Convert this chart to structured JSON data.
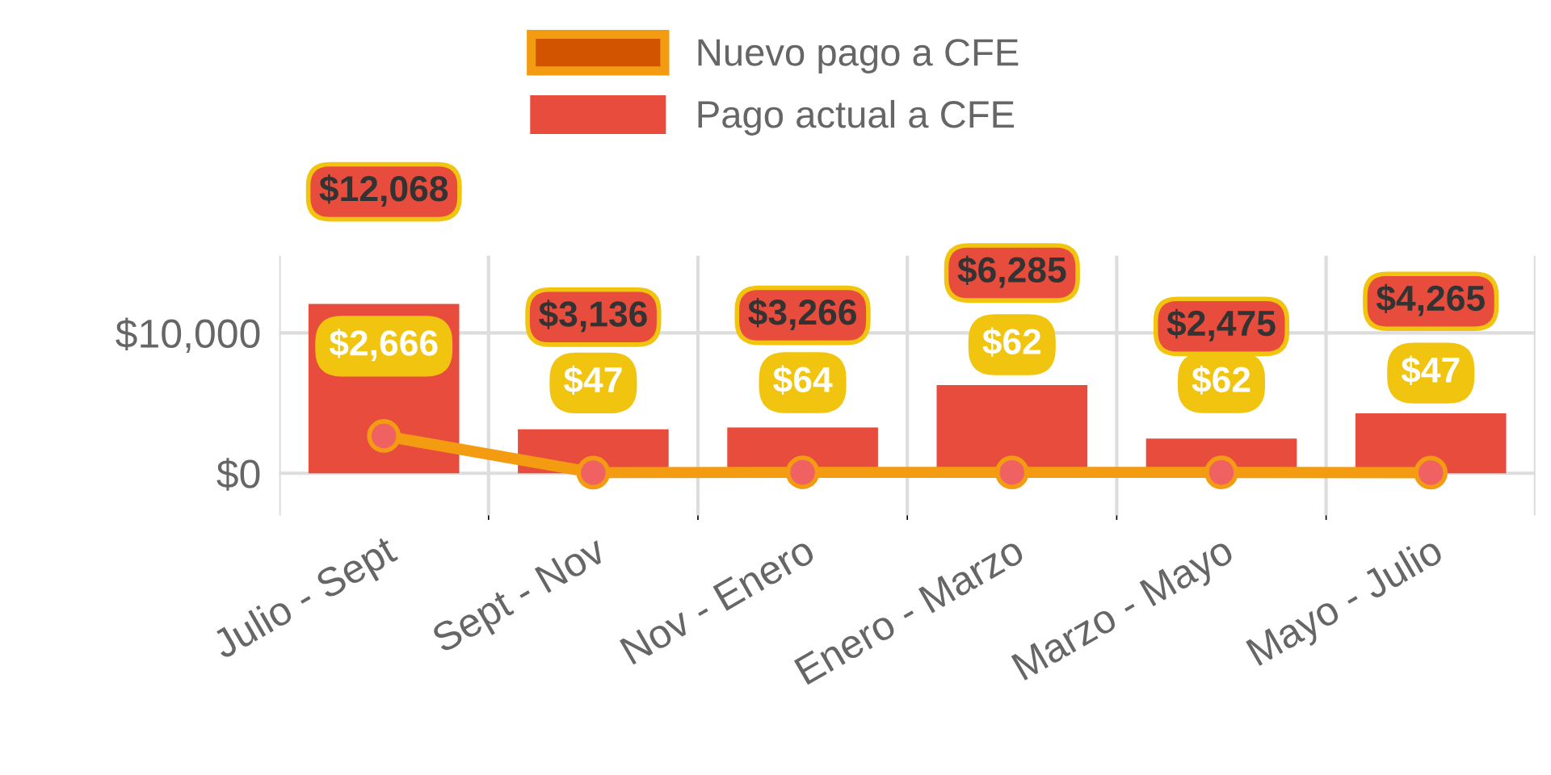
{
  "chart_data": {
    "type": "bar",
    "categories": [
      "Julio - Sept",
      "Sept - Nov",
      "Nov - Enero",
      "Enero - Marzo",
      "Marzo - Mayo",
      "Mayo - Julio"
    ],
    "series": [
      {
        "name": "Nuevo pago a CFE",
        "type": "line",
        "color": "#f39c12",
        "values": [
          2666,
          47,
          64,
          62,
          62,
          47
        ],
        "value_labels": [
          "$2,666",
          "$47",
          "$64",
          "$62",
          "$62",
          "$47"
        ]
      },
      {
        "name": "Pago actual a CFE",
        "color": "#e74c3c",
        "values": [
          12068,
          3136,
          3266,
          6285,
          2475,
          4265
        ],
        "value_labels": [
          "$12,068",
          "$3,136",
          "$3,266",
          "$6,285",
          "$2,475",
          "$4,265"
        ]
      }
    ],
    "ylim": [
      -3000,
      15500
    ],
    "yticks": [
      {
        "value": 0,
        "label": "$0"
      },
      {
        "value": 10000,
        "label": "$10,000"
      }
    ],
    "grid": true,
    "legend": "top",
    "marker": "circle"
  }
}
